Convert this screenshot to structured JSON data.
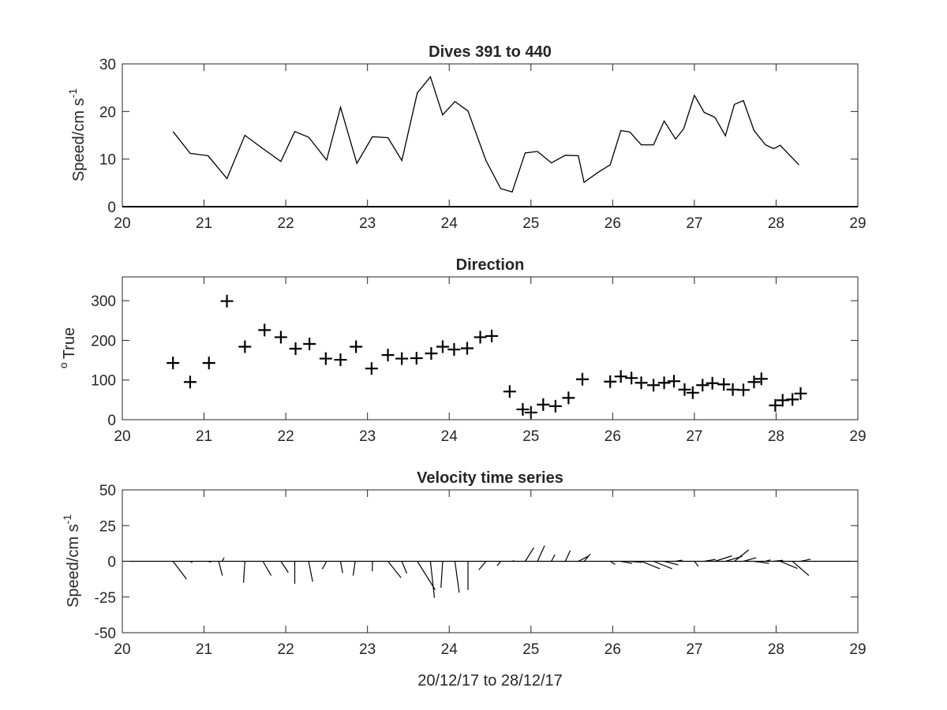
{
  "chart_data": [
    {
      "type": "line",
      "title": "Dives 391 to 440",
      "ylabel": "Speed/cm s",
      "ylabel_superscript": "-1",
      "xlim": [
        20,
        29
      ],
      "ylim": [
        0,
        30
      ],
      "xticks": [
        20,
        21,
        22,
        23,
        24,
        25,
        26,
        27,
        28,
        29
      ],
      "yticks": [
        0,
        10,
        20,
        30
      ],
      "grid": false,
      "series": [
        {
          "color": "#000000",
          "x": [
            20.62,
            20.83,
            21.05,
            21.28,
            21.5,
            21.72,
            21.94,
            22.11,
            22.28,
            22.5,
            22.67,
            22.87,
            23.06,
            23.25,
            23.42,
            23.61,
            23.77,
            23.92,
            24.07,
            24.23,
            24.45,
            24.63,
            24.77,
            24.93,
            25.08,
            25.25,
            25.42,
            25.58,
            25.65,
            25.82,
            25.97,
            26.1,
            26.21,
            26.35,
            26.5,
            26.63,
            26.77,
            26.87,
            27.0,
            27.12,
            27.25,
            27.38,
            27.49,
            27.6,
            27.73,
            27.87,
            27.97,
            28.05,
            28.28
          ],
          "y": [
            15.8,
            11.2,
            10.7,
            5.9,
            15.0,
            12.2,
            9.5,
            15.8,
            14.6,
            9.8,
            20.9,
            9.1,
            14.7,
            14.5,
            9.7,
            23.9,
            27.3,
            19.3,
            22.1,
            20.1,
            9.7,
            3.8,
            3.1,
            11.3,
            11.6,
            9.2,
            10.8,
            10.7,
            5.1,
            7.2,
            8.8,
            16.0,
            15.7,
            13.0,
            13.0,
            18.0,
            14.2,
            16.4,
            23.4,
            19.8,
            18.8,
            14.9,
            21.5,
            22.3,
            16.0,
            13.0,
            12.2,
            12.9,
            8.8
          ]
        }
      ]
    },
    {
      "type": "scatter",
      "title": "Direction",
      "ylabel": "True",
      "ylabel_prefix": "o",
      "xlim": [
        20,
        29
      ],
      "ylim": [
        0,
        360
      ],
      "xticks": [
        20,
        21,
        22,
        23,
        24,
        25,
        26,
        27,
        28,
        29
      ],
      "yticks": [
        0,
        100,
        200,
        300
      ],
      "grid": false,
      "marker": "+",
      "series": [
        {
          "color": "#000000",
          "x": [
            20.62,
            20.83,
            21.06,
            21.28,
            21.5,
            21.74,
            21.94,
            22.12,
            22.29,
            22.49,
            22.67,
            22.86,
            23.05,
            23.25,
            23.42,
            23.6,
            23.78,
            23.92,
            24.06,
            24.22,
            24.38,
            24.52,
            24.74,
            24.9,
            25.0,
            25.15,
            25.3,
            25.46,
            25.63,
            25.97,
            26.1,
            26.23,
            26.35,
            26.5,
            26.63,
            26.75,
            26.88,
            26.98,
            27.1,
            27.22,
            27.36,
            27.47,
            27.6,
            27.73,
            27.82,
            27.99,
            28.08,
            28.2,
            28.3
          ],
          "y": [
            143,
            95,
            143,
            299,
            184,
            226,
            208,
            179,
            191,
            154,
            151,
            184,
            129,
            163,
            154,
            155,
            167,
            184,
            177,
            180,
            208,
            211,
            71,
            26,
            18,
            38,
            34,
            55,
            102,
            96,
            109,
            105,
            93,
            87,
            93,
            97,
            76,
            68,
            87,
            92,
            89,
            76,
            75,
            95,
            103,
            36,
            49,
            51,
            66
          ]
        }
      ]
    },
    {
      "type": "quiver",
      "title": "Velocity time series",
      "ylabel": "Speed/cm s",
      "ylabel_superscript": "-1",
      "xlabel": "20/12/17 to 28/12/17",
      "xlim": [
        20,
        29
      ],
      "ylim": [
        -50,
        50
      ],
      "xticks": [
        20,
        21,
        22,
        23,
        24,
        25,
        26,
        27,
        28,
        29
      ],
      "yticks": [
        -50,
        -25,
        0,
        25,
        50
      ],
      "ytick_labels": [
        "-50",
        "-25",
        "0",
        "25",
        "50"
      ],
      "grid": false,
      "baseline": 0,
      "series": [
        {
          "color": "#000000",
          "x": [
            20.62,
            20.83,
            21.05,
            21.18,
            21.22,
            21.5,
            21.72,
            21.94,
            22.11,
            22.28,
            22.5,
            22.67,
            22.85,
            23.06,
            23.25,
            23.42,
            23.61,
            23.77,
            23.92,
            24.07,
            24.23,
            24.45,
            24.63,
            24.77,
            24.93,
            25.08,
            25.25,
            25.42,
            25.58,
            25.65,
            25.97,
            26.1,
            26.21,
            26.35,
            26.5,
            26.63,
            26.77,
            26.87,
            27.0,
            27.12,
            27.25,
            27.38,
            27.49,
            27.6,
            27.73,
            27.87,
            27.97,
            28.05,
            28.2,
            28.3
          ],
          "u": [
            9.5,
            1.5,
            2.2,
            2.5,
            1.5,
            -1.0,
            5.8,
            5.2,
            0,
            2.8,
            -3.0,
            1.5,
            -1.5,
            0,
            9.2,
            3.5,
            12.5,
            2.8,
            -1.2,
            3.0,
            0,
            -5.0,
            -2.5,
            1.6,
            6.0,
            5.0,
            2.5,
            3.5,
            6.8,
            4.5,
            3.5,
            7.8,
            8.7,
            13.0,
            13.0,
            10.0,
            4.7,
            -1.5,
            2.8,
            8.0,
            12.0,
            11.8,
            10.0,
            9.0,
            10.5,
            3.5,
            6.5,
            12.0,
            11.5,
            7.0
          ],
          "v": [
            -12.5,
            -1.0,
            -0.5,
            -10.0,
            2.5,
            -15.0,
            -10.0,
            -7.8,
            -15.8,
            -14.3,
            -5.5,
            -8.2,
            -10.0,
            -7.0,
            -11.5,
            -8.5,
            -20.0,
            -25.5,
            -18.5,
            -22.0,
            -20.1,
            -6.0,
            -3.2,
            0.4,
            9.5,
            11.0,
            4.7,
            7.5,
            3.5,
            5.1,
            -2.2,
            -1.5,
            -0.8,
            -5.2,
            -5.2,
            -2.5,
            0.8,
            0,
            -3.5,
            1.3,
            3.8,
            3.5,
            8.0,
            2.5,
            -1.5,
            1.0,
            0.7,
            -5.0,
            -10.0,
            1.5
          ]
        }
      ]
    }
  ]
}
